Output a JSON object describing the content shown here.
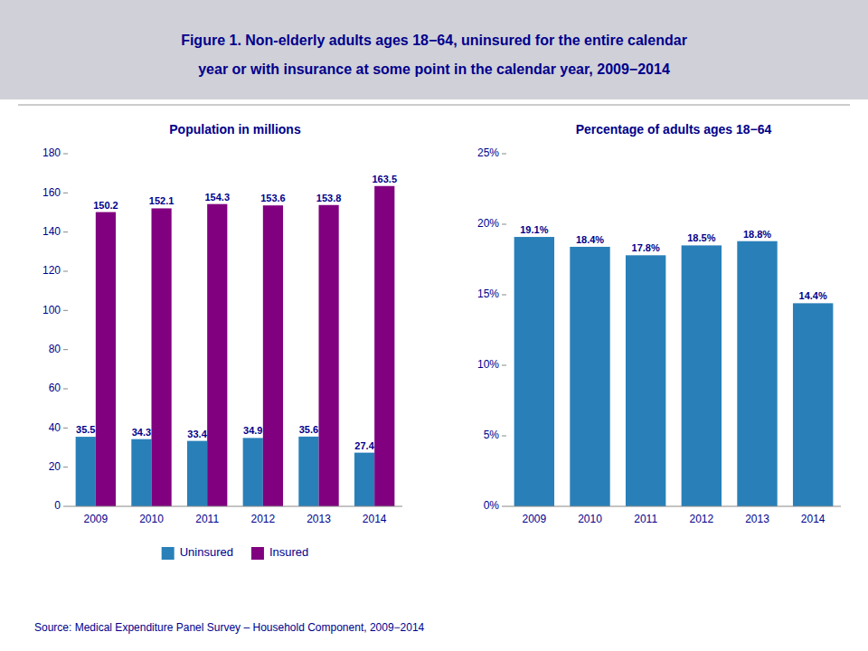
{
  "title": "Figure 1. Non-elderly adults ages 18−64, uninsured for the entire calendar",
  "subtitle": "year or with insurance at some point in the calendar year, 2009−2014",
  "annotations": [
    "Source: Medical Expenditure Panel Survey – Household Component, 2009−2014"
  ],
  "chart_data": [
    {
      "type": "bar",
      "title": "Population in millions",
      "categories": [
        "2009",
        "2010",
        "2011",
        "2012",
        "2013",
        "2014"
      ],
      "series": [
        {
          "name": "Uninsured",
          "color": "#2980B9",
          "values": [
            35.5,
            34.3,
            33.4,
            34.9,
            35.6,
            27.4
          ]
        },
        {
          "name": "Insured",
          "color": "#800080",
          "values": [
            150.2,
            152.1,
            154.3,
            153.6,
            153.8,
            163.5
          ]
        }
      ],
      "ylim": [
        0,
        180
      ],
      "yticks": [
        0,
        20,
        40,
        60,
        80,
        100,
        120,
        140,
        160,
        180
      ],
      "grid": false,
      "legend": "bottom",
      "data_labels": true
    },
    {
      "type": "bar",
      "title": "Percentage of adults ages 18−64",
      "categories": [
        "2009",
        "2010",
        "2011",
        "2012",
        "2013",
        "2014"
      ],
      "values": [
        0.191,
        0.184,
        0.178,
        0.185,
        0.188,
        0.144
      ],
      "value_labels": [
        "19.1%",
        "18.4%",
        "17.8%",
        "18.5%",
        "18.8%",
        "14.4%"
      ],
      "color": "#2980B9",
      "ylim": [
        0,
        0.25
      ],
      "yticks": [
        {
          "value": 0,
          "label": "0%"
        },
        {
          "value": 0.05,
          "label": "5%"
        },
        {
          "value": 0.1,
          "label": "10%"
        },
        {
          "value": 0.15,
          "label": "15%"
        },
        {
          "value": 0.2,
          "label": "20%"
        },
        {
          "value": 0.25,
          "label": "25%"
        }
      ],
      "grid": false,
      "data_labels": true
    }
  ]
}
